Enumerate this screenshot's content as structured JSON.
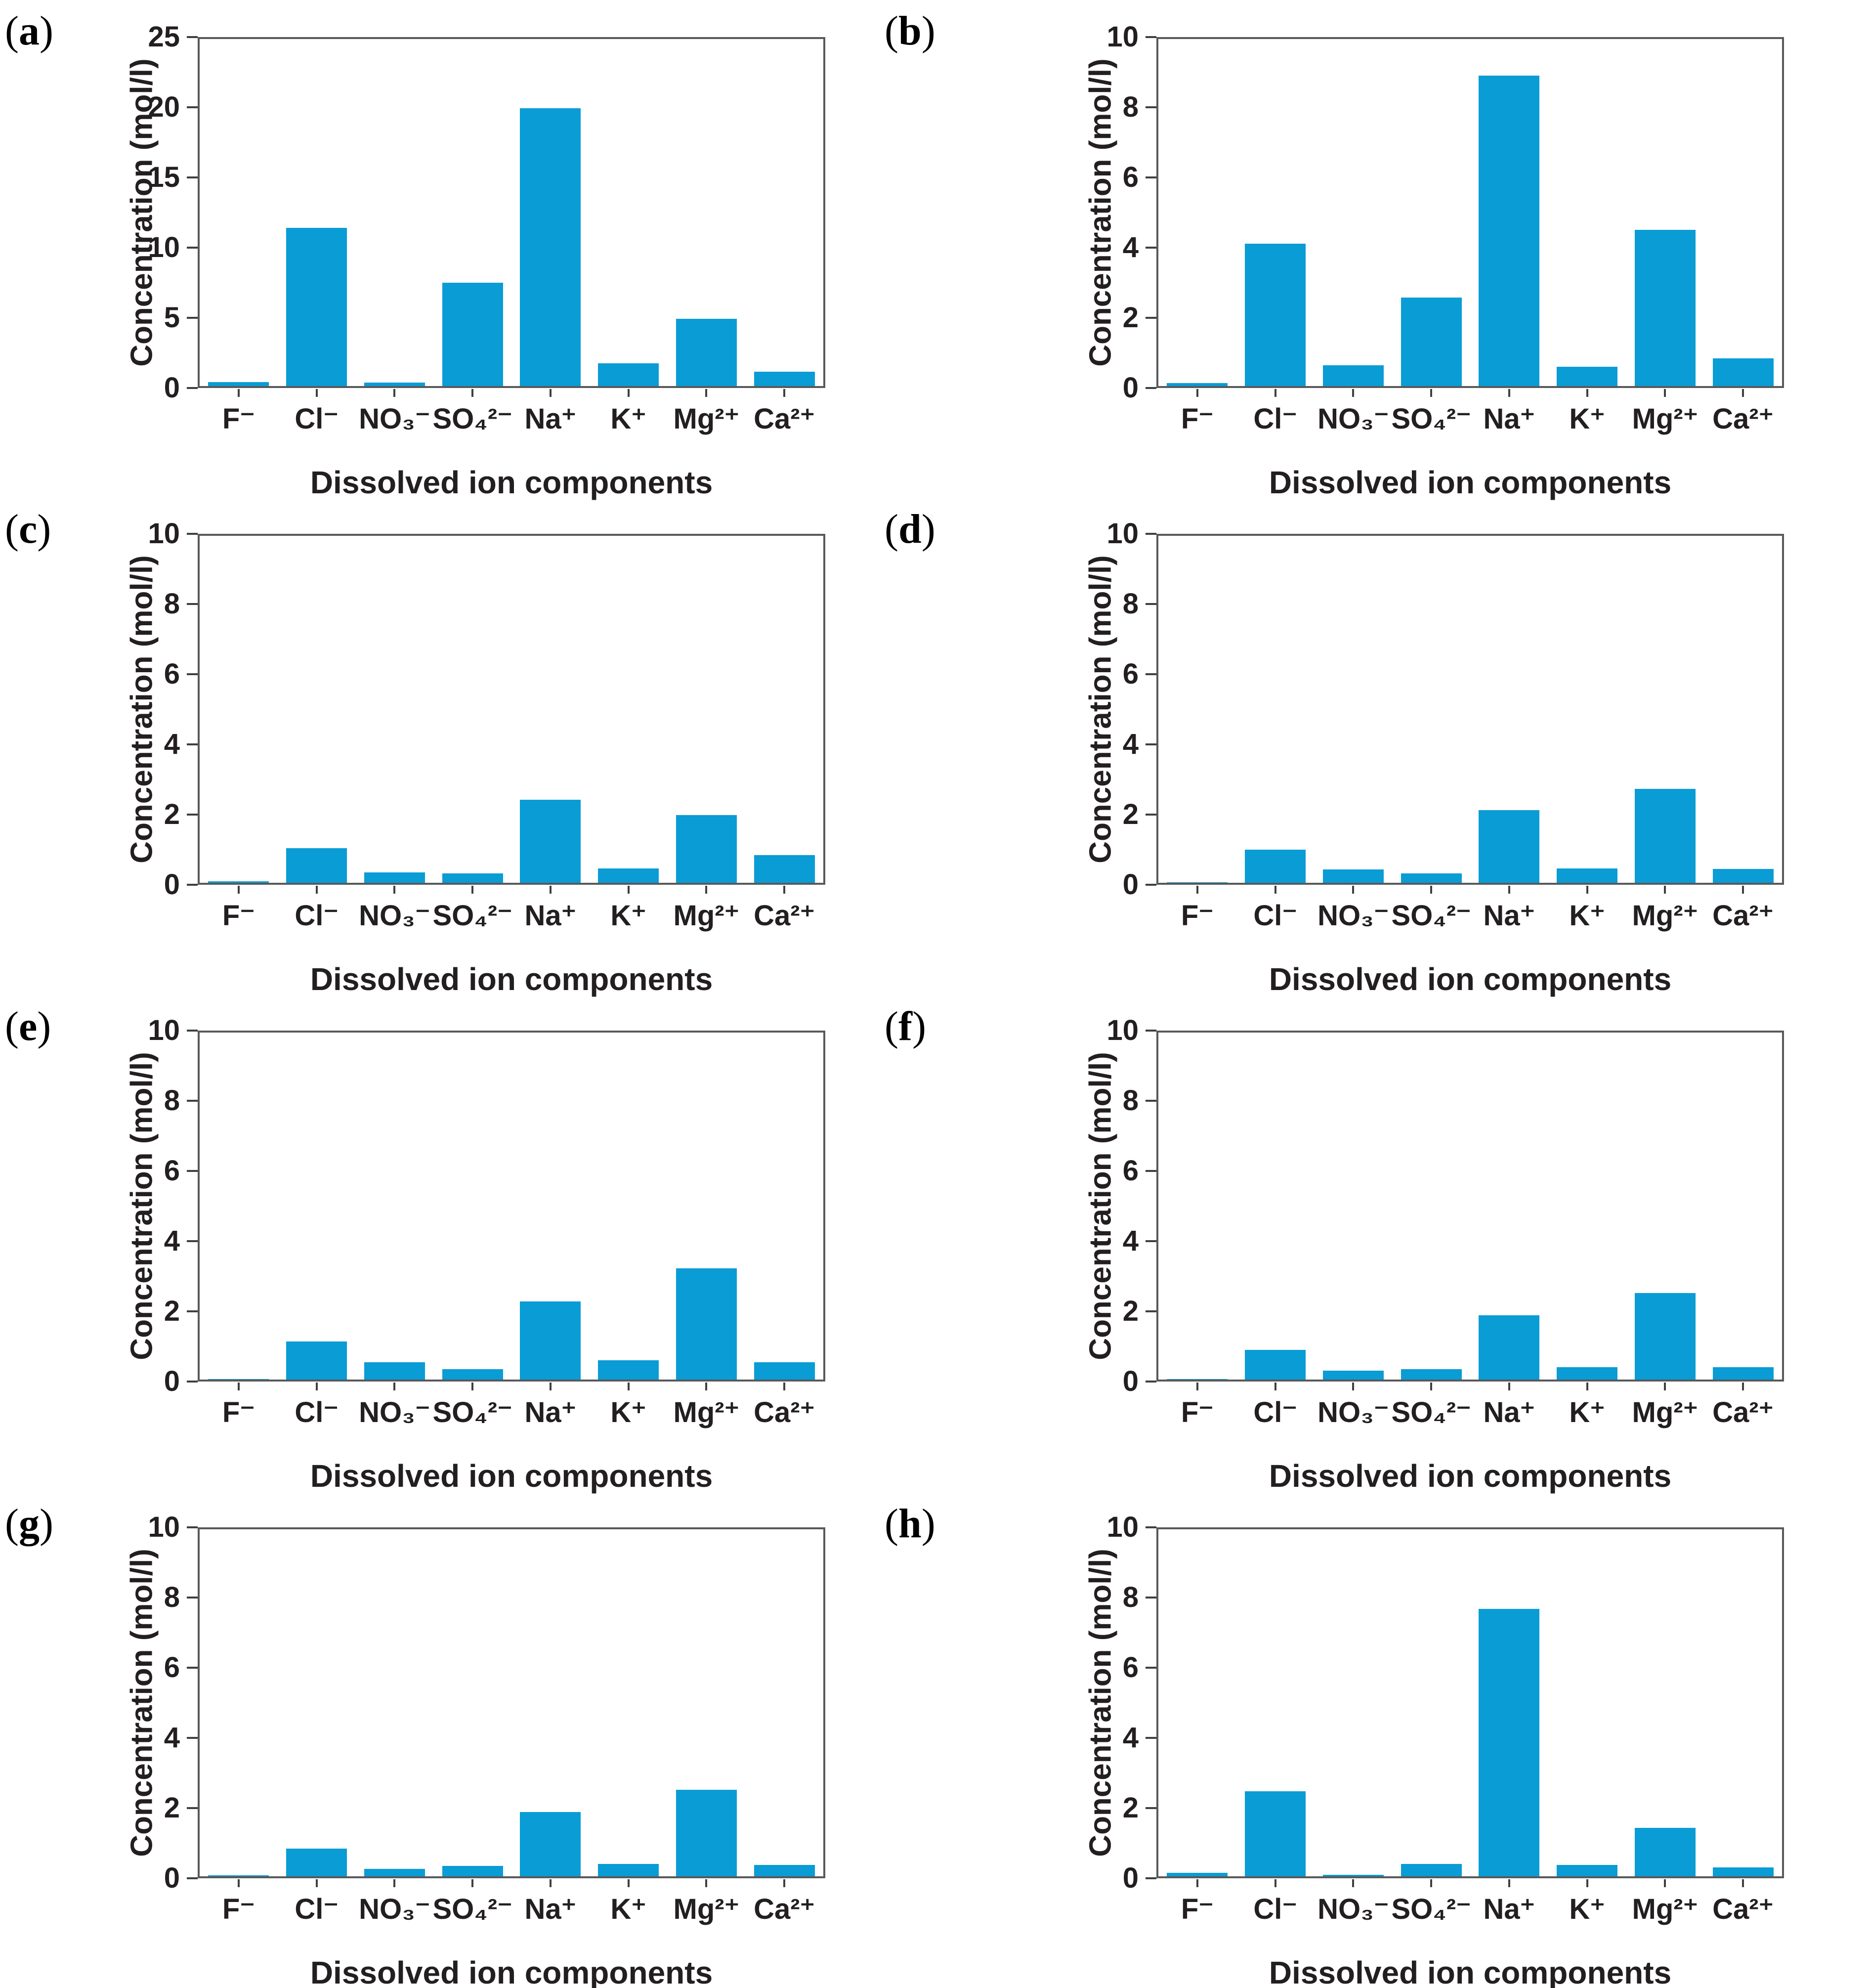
{
  "figure": {
    "description": "Eight-panel figure of dissolved ion concentration bar charts",
    "bar_color": "#0a9cd5",
    "frame_color": "#58595b",
    "text_color": "#231f20"
  },
  "chart_data": [
    {
      "type": "bar",
      "panel_label": "a",
      "xlabel": "Dissolved ion components",
      "ylabel": "Concentration (mol/l)",
      "categories": [
        "F⁻",
        "Cl⁻",
        "NO₃⁻",
        "SO₄²⁻",
        "Na⁺",
        "K⁺",
        "Mg²⁺",
        "Ca²⁺"
      ],
      "category_ids": [
        "f",
        "cl",
        "no3",
        "so4",
        "na",
        "k",
        "mg",
        "ca"
      ],
      "values": [
        0.3,
        11.4,
        0.25,
        7.45,
        20.0,
        1.65,
        4.85,
        1.05
      ],
      "ylim": [
        0,
        25
      ],
      "yticks": [
        0,
        5,
        10,
        15,
        20,
        25
      ],
      "grid": false,
      "legend": null
    },
    {
      "type": "bar",
      "panel_label": "b",
      "xlabel": "Dissolved ion components",
      "ylabel": "Concentration (mol/l)",
      "categories": [
        "F⁻",
        "Cl⁻",
        "NO₃⁻",
        "SO₄²⁻",
        "Na⁺",
        "K⁺",
        "Mg²⁺",
        "Ca²⁺"
      ],
      "category_ids": [
        "f",
        "cl",
        "no3",
        "so4",
        "na",
        "k",
        "mg",
        "ca"
      ],
      "values": [
        0.08,
        4.1,
        0.6,
        2.55,
        8.95,
        0.55,
        4.5,
        0.8
      ],
      "ylim": [
        0,
        10
      ],
      "yticks": [
        0,
        2,
        4,
        6,
        8,
        10
      ],
      "grid": false,
      "legend": null
    },
    {
      "type": "bar",
      "panel_label": "c",
      "xlabel": "Dissolved ion components",
      "ylabel": "Concentration (mol/l)",
      "categories": [
        "F⁻",
        "Cl⁻",
        "NO₃⁻",
        "SO₄²⁻",
        "Na⁺",
        "K⁺",
        "Mg²⁺",
        "Ca²⁺"
      ],
      "category_ids": [
        "f",
        "cl",
        "no3",
        "so4",
        "na",
        "k",
        "mg",
        "ca"
      ],
      "values": [
        0.05,
        1.0,
        0.3,
        0.27,
        2.4,
        0.42,
        1.95,
        0.8
      ],
      "ylim": [
        0,
        10
      ],
      "yticks": [
        0,
        2,
        4,
        6,
        8,
        10
      ],
      "grid": false,
      "legend": null
    },
    {
      "type": "bar",
      "panel_label": "d",
      "xlabel": "Dissolved ion components",
      "ylabel": "Concentration (mol/l)",
      "categories": [
        "F⁻",
        "Cl⁻",
        "NO₃⁻",
        "SO₄²⁻",
        "Na⁺",
        "K⁺",
        "Mg²⁺",
        "Ca²⁺"
      ],
      "category_ids": [
        "f",
        "cl",
        "no3",
        "so4",
        "na",
        "k",
        "mg",
        "ca"
      ],
      "values": [
        0.02,
        0.95,
        0.38,
        0.27,
        2.1,
        0.42,
        2.7,
        0.4
      ],
      "ylim": [
        0,
        10
      ],
      "yticks": [
        0,
        2,
        4,
        6,
        8,
        10
      ],
      "grid": false,
      "legend": null
    },
    {
      "type": "bar",
      "panel_label": "e",
      "xlabel": "Dissolved ion components",
      "ylabel": "Concentration (mol/l)",
      "categories": [
        "F⁻",
        "Cl⁻",
        "NO₃⁻",
        "SO₄²⁻",
        "Na⁺",
        "K⁺",
        "Mg²⁺",
        "Ca²⁺"
      ],
      "category_ids": [
        "f",
        "cl",
        "no3",
        "so4",
        "na",
        "k",
        "mg",
        "ca"
      ],
      "values": [
        0.02,
        1.1,
        0.5,
        0.3,
        2.25,
        0.55,
        3.2,
        0.5
      ],
      "ylim": [
        0,
        10
      ],
      "yticks": [
        0,
        2,
        4,
        6,
        8,
        10
      ],
      "grid": false,
      "legend": null
    },
    {
      "type": "bar",
      "panel_label": "f",
      "xlabel": "Dissolved ion components",
      "ylabel": "Concentration (mol/l)",
      "categories": [
        "F⁻",
        "Cl⁻",
        "NO₃⁻",
        "SO₄²⁻",
        "Na⁺",
        "K⁺",
        "Mg²⁺",
        "Ca²⁺"
      ],
      "category_ids": [
        "f",
        "cl",
        "no3",
        "so4",
        "na",
        "k",
        "mg",
        "ca"
      ],
      "values": [
        0.02,
        0.85,
        0.25,
        0.3,
        1.85,
        0.35,
        2.5,
        0.35
      ],
      "ylim": [
        0,
        10
      ],
      "yticks": [
        0,
        2,
        4,
        6,
        8,
        10
      ],
      "grid": false,
      "legend": null
    },
    {
      "type": "bar",
      "panel_label": "g",
      "xlabel": "Dissolved ion components",
      "ylabel": "Concentration (mol/l)",
      "categories": [
        "F⁻",
        "Cl⁻",
        "NO₃⁻",
        "SO₄²⁻",
        "Na⁺",
        "K⁺",
        "Mg²⁺",
        "Ca²⁺"
      ],
      "category_ids": [
        "f",
        "cl",
        "no3",
        "so4",
        "na",
        "k",
        "mg",
        "ca"
      ],
      "values": [
        0.03,
        0.8,
        0.22,
        0.3,
        1.85,
        0.35,
        2.5,
        0.33
      ],
      "ylim": [
        0,
        10
      ],
      "yticks": [
        0,
        2,
        4,
        6,
        8,
        10
      ],
      "grid": false,
      "legend": null
    },
    {
      "type": "bar",
      "panel_label": "h",
      "xlabel": "Dissolved ion components",
      "ylabel": "Concentration (mol/l)",
      "categories": [
        "F⁻",
        "Cl⁻",
        "NO₃⁻",
        "SO₄²⁻",
        "Na⁺",
        "K⁺",
        "Mg²⁺",
        "Ca²⁺"
      ],
      "category_ids": [
        "f",
        "cl",
        "no3",
        "so4",
        "na",
        "k",
        "mg",
        "ca"
      ],
      "values": [
        0.1,
        2.45,
        0.05,
        0.35,
        7.7,
        0.33,
        1.4,
        0.25
      ],
      "ylim": [
        0,
        10
      ],
      "yticks": [
        0,
        2,
        4,
        6,
        8,
        10
      ],
      "grid": false,
      "legend": null
    }
  ]
}
